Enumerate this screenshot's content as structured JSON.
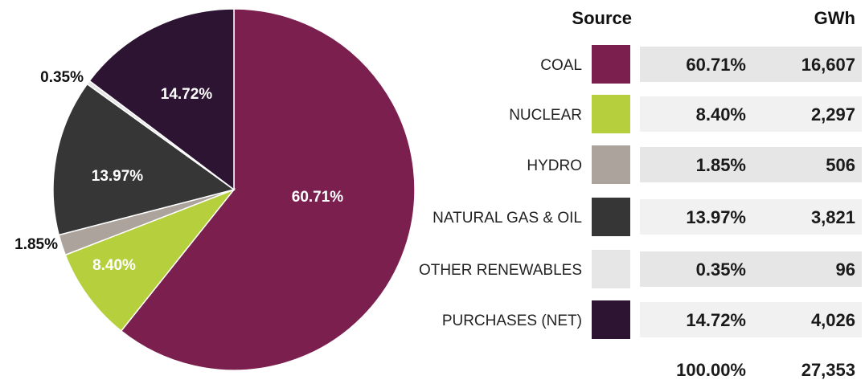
{
  "chart_data": {
    "type": "pie",
    "categories": [
      "COAL",
      "NUCLEAR",
      "HYDRO",
      "NATURAL GAS & OIL",
      "OTHER RENEWABLES",
      "PURCHASES (NET)"
    ],
    "values": [
      60.71,
      8.4,
      1.85,
      13.97,
      0.35,
      14.72
    ],
    "slice_labels": [
      "60.71%",
      "8.40%",
      "1.85%",
      "13.97%",
      "0.35%",
      "14.72%"
    ],
    "colors": [
      "#7b1f4f",
      "#b5cf3d",
      "#ada39d",
      "#363636",
      "#e6e6e6",
      "#2e1433"
    ],
    "label_colors": [
      "#ffffff",
      "#ffffff",
      "#111111",
      "#ffffff",
      "#111111",
      "#ffffff"
    ],
    "label_placement": [
      "inside",
      "inside",
      "outside",
      "inside",
      "outside",
      "inside"
    ],
    "start": "12 o'clock",
    "direction": "clockwise"
  },
  "table": {
    "header_source": "Source",
    "header_gwh": "GWh",
    "rows": [
      {
        "label": "COAL",
        "pct": "60.71%",
        "gwh": "16,607",
        "color": "#7b1f4f",
        "band": "#e6e6e6"
      },
      {
        "label": "NUCLEAR",
        "pct": "8.40%",
        "gwh": "2,297",
        "color": "#b5cf3d",
        "band": "#f1f1f1"
      },
      {
        "label": "HYDRO",
        "pct": "1.85%",
        "gwh": "506",
        "color": "#ada39d",
        "band": "#e6e6e6"
      },
      {
        "label": "NATURAL GAS & OIL",
        "pct": "13.97%",
        "gwh": "3,821",
        "color": "#363636",
        "band": "#f1f1f1"
      },
      {
        "label": "OTHER RENEWABLES",
        "pct": "0.35%",
        "gwh": "96",
        "color": "#e6e6e6",
        "band": "#e6e6e6"
      },
      {
        "label": "PURCHASES (NET)",
        "pct": "14.72%",
        "gwh": "4,026",
        "color": "#2e1433",
        "band": "#f1f1f1"
      }
    ],
    "total_pct": "100.00%",
    "total_gwh": "27,353"
  }
}
